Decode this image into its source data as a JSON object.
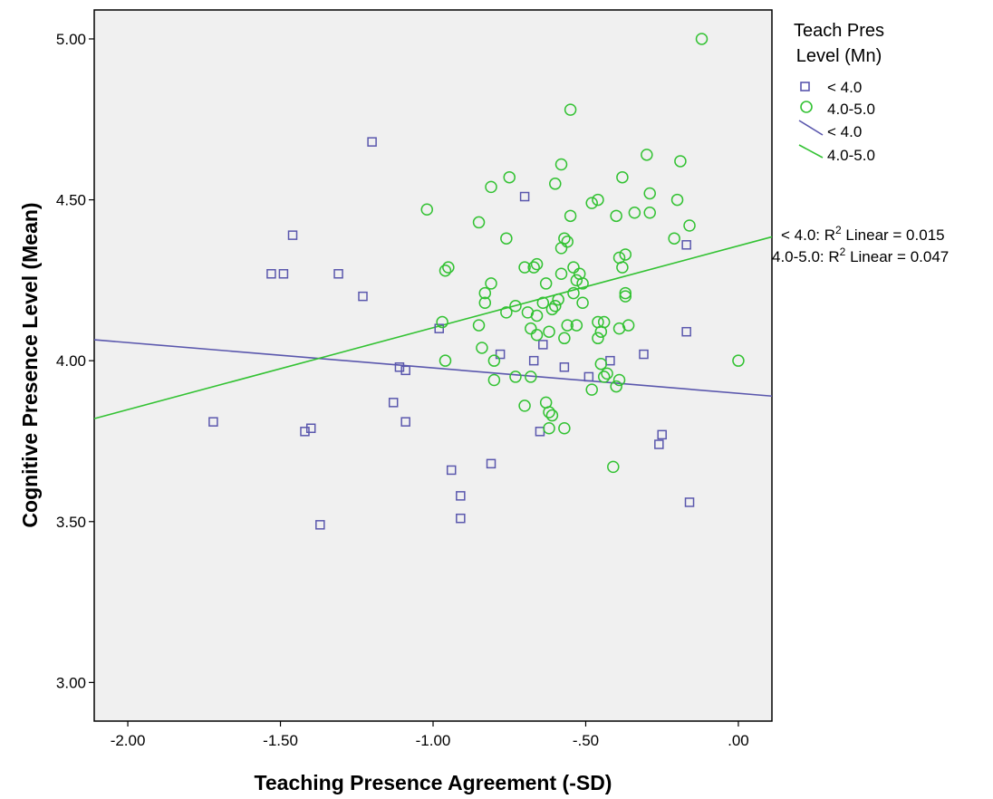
{
  "chart_data": {
    "type": "scatter",
    "xlabel": "Teaching Presence Agreement (-SD)",
    "ylabel": "Cognitive Presence Level (Mean)",
    "xlim": [
      -2.11,
      0.11
    ],
    "ylim": [
      2.88,
      5.09
    ],
    "x_ticks": [
      -2.0,
      -1.5,
      -1.0,
      -0.5,
      0.0
    ],
    "x_tick_labels": [
      "-2.00",
      "-1.50",
      "-1.00",
      "-.50",
      ".00"
    ],
    "y_ticks": [
      3.0,
      3.5,
      4.0,
      4.5,
      5.0
    ],
    "y_tick_labels": [
      "3.00",
      "3.50",
      "4.00",
      "4.50",
      "5.00"
    ],
    "grid": false,
    "legend_placement": "right",
    "legend": {
      "title_line1": "Teach Pres",
      "title_line2": "Level (Mn)",
      "items": [
        "< 4.0",
        "4.0-5.0",
        "< 4.0",
        "4.0-5.0"
      ]
    },
    "fit_annotations": {
      "low_prefix": "< 4.0: R",
      "mid_prefix": "4.0-5.0: R",
      "superscript": "2",
      "low_suffix": " Linear = 0.015",
      "mid_suffix": " Linear = 0.047"
    },
    "colors": {
      "low": "#5a57ad",
      "mid": "#33c233",
      "plot_bg": "#f0f0f0"
    },
    "series": [
      {
        "name": "< 4.0",
        "marker": "square",
        "fit_line": {
          "x": [
            -2.11,
            0.11
          ],
          "y": [
            4.065,
            3.89
          ]
        },
        "points": [
          [
            -1.72,
            3.81
          ],
          [
            -1.53,
            4.27
          ],
          [
            -1.49,
            4.27
          ],
          [
            -1.46,
            4.39
          ],
          [
            -1.42,
            3.78
          ],
          [
            -1.4,
            3.79
          ],
          [
            -1.37,
            3.49
          ],
          [
            -1.31,
            4.27
          ],
          [
            -1.23,
            4.2
          ],
          [
            -1.2,
            4.68
          ],
          [
            -1.13,
            3.87
          ],
          [
            -1.11,
            3.98
          ],
          [
            -1.09,
            3.97
          ],
          [
            -1.09,
            3.81
          ],
          [
            -0.98,
            4.1
          ],
          [
            -0.94,
            3.66
          ],
          [
            -0.91,
            3.58
          ],
          [
            -0.91,
            3.51
          ],
          [
            -0.81,
            3.68
          ],
          [
            -0.78,
            4.02
          ],
          [
            -0.7,
            4.51
          ],
          [
            -0.67,
            4.0
          ],
          [
            -0.65,
            3.78
          ],
          [
            -0.64,
            4.05
          ],
          [
            -0.57,
            3.98
          ],
          [
            -0.49,
            3.95
          ],
          [
            -0.42,
            4.0
          ],
          [
            -0.31,
            4.02
          ],
          [
            -0.26,
            3.74
          ],
          [
            -0.25,
            3.77
          ],
          [
            -0.17,
            4.36
          ],
          [
            -0.17,
            4.09
          ],
          [
            -0.16,
            3.56
          ]
        ]
      },
      {
        "name": "4.0-5.0",
        "marker": "circle",
        "fit_line": {
          "x": [
            -2.11,
            0.11
          ],
          "y": [
            3.82,
            4.385
          ]
        },
        "points": [
          [
            -1.02,
            4.47
          ],
          [
            -0.97,
            4.12
          ],
          [
            -0.96,
            4.28
          ],
          [
            -0.96,
            4.0
          ],
          [
            -0.95,
            4.29
          ],
          [
            -0.85,
            4.43
          ],
          [
            -0.85,
            4.11
          ],
          [
            -0.84,
            4.04
          ],
          [
            -0.83,
            4.18
          ],
          [
            -0.83,
            4.21
          ],
          [
            -0.81,
            4.24
          ],
          [
            -0.81,
            4.54
          ],
          [
            -0.8,
            4.0
          ],
          [
            -0.8,
            3.94
          ],
          [
            -0.76,
            4.15
          ],
          [
            -0.76,
            4.38
          ],
          [
            -0.75,
            4.57
          ],
          [
            -0.73,
            4.17
          ],
          [
            -0.73,
            3.95
          ],
          [
            -0.7,
            3.86
          ],
          [
            -0.7,
            4.29
          ],
          [
            -0.69,
            4.15
          ],
          [
            -0.68,
            4.1
          ],
          [
            -0.68,
            3.95
          ],
          [
            -0.67,
            4.29
          ],
          [
            -0.66,
            4.3
          ],
          [
            -0.66,
            4.14
          ],
          [
            -0.66,
            4.08
          ],
          [
            -0.64,
            4.18
          ],
          [
            -0.63,
            3.87
          ],
          [
            -0.63,
            4.24
          ],
          [
            -0.62,
            4.09
          ],
          [
            -0.62,
            3.84
          ],
          [
            -0.62,
            3.79
          ],
          [
            -0.61,
            3.83
          ],
          [
            -0.61,
            4.16
          ],
          [
            -0.6,
            4.17
          ],
          [
            -0.6,
            4.55
          ],
          [
            -0.59,
            4.19
          ],
          [
            -0.58,
            4.27
          ],
          [
            -0.58,
            4.35
          ],
          [
            -0.58,
            4.61
          ],
          [
            -0.57,
            4.38
          ],
          [
            -0.57,
            4.07
          ],
          [
            -0.57,
            3.79
          ],
          [
            -0.56,
            4.11
          ],
          [
            -0.56,
            4.37
          ],
          [
            -0.55,
            4.45
          ],
          [
            -0.55,
            4.78
          ],
          [
            -0.54,
            4.29
          ],
          [
            -0.54,
            4.21
          ],
          [
            -0.53,
            4.25
          ],
          [
            -0.53,
            4.11
          ],
          [
            -0.52,
            4.27
          ],
          [
            -0.51,
            4.24
          ],
          [
            -0.51,
            4.18
          ],
          [
            -0.48,
            4.49
          ],
          [
            -0.48,
            3.91
          ],
          [
            -0.46,
            4.5
          ],
          [
            -0.46,
            4.07
          ],
          [
            -0.46,
            4.12
          ],
          [
            -0.45,
            4.09
          ],
          [
            -0.45,
            3.99
          ],
          [
            -0.44,
            3.95
          ],
          [
            -0.44,
            4.12
          ],
          [
            -0.43,
            3.96
          ],
          [
            -0.41,
            3.67
          ],
          [
            -0.4,
            4.45
          ],
          [
            -0.4,
            3.92
          ],
          [
            -0.39,
            4.1
          ],
          [
            -0.39,
            3.94
          ],
          [
            -0.39,
            4.32
          ],
          [
            -0.38,
            4.57
          ],
          [
            -0.38,
            4.29
          ],
          [
            -0.37,
            4.21
          ],
          [
            -0.37,
            4.33
          ],
          [
            -0.37,
            4.2
          ],
          [
            -0.36,
            4.11
          ],
          [
            -0.34,
            4.46
          ],
          [
            -0.3,
            4.64
          ],
          [
            -0.29,
            4.52
          ],
          [
            -0.29,
            4.46
          ],
          [
            -0.21,
            4.38
          ],
          [
            -0.2,
            4.5
          ],
          [
            -0.19,
            4.62
          ],
          [
            -0.16,
            4.42
          ],
          [
            -0.12,
            5.0
          ],
          [
            0.0,
            4.0
          ]
        ]
      }
    ]
  }
}
